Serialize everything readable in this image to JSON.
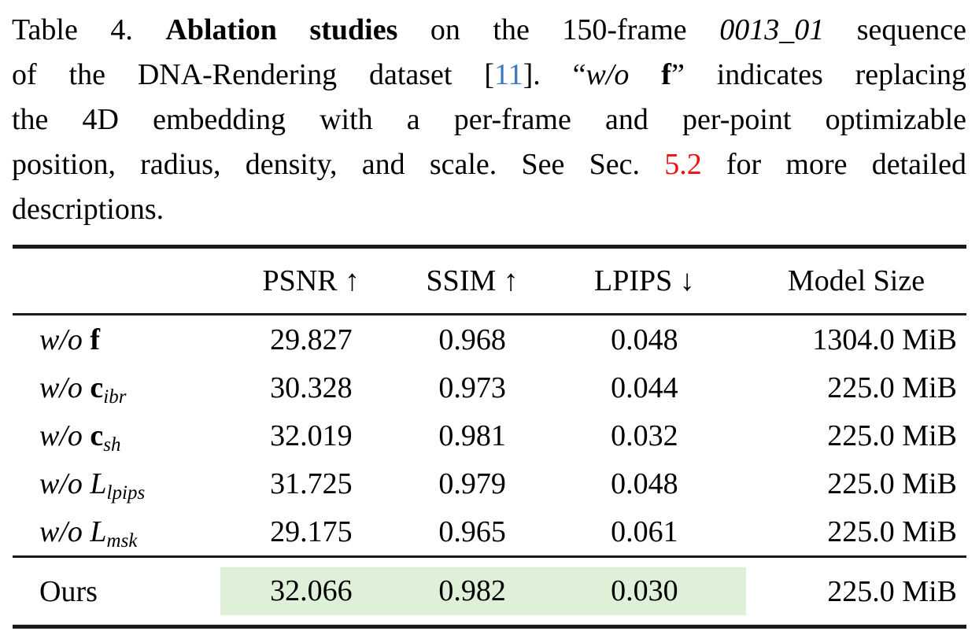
{
  "caption": {
    "line1": {
      "label": "Table 4. ",
      "bold_title": "Ablation studies",
      "a": " on the 150-frame ",
      "sequence_name": "0013_01",
      "b": " sequence"
    },
    "line2": {
      "a": "of the DNA-Rendering dataset [",
      "citation": "11",
      "b": "]. “",
      "wo": "w/o ",
      "f": "f",
      "c": "” indicates replacing"
    },
    "line3": {
      "text": "the 4D embedding with a per-frame and per-point optimizable"
    },
    "line4": {
      "a": "position, radius, density, and scale. See Sec. ",
      "section_ref": "5.2",
      "b": " for more detailed"
    },
    "line5": {
      "text": "descriptions."
    }
  },
  "table": {
    "headers": {
      "psnr": "PSNR ↑",
      "ssim": "SSIM ↑",
      "lpips": "LPIPS ↓",
      "size": "Model Size"
    },
    "rows": [
      {
        "wo": "w/o ",
        "symbol": "f",
        "sub": "",
        "psnr": "29.827",
        "ssim": "0.968",
        "lpips": "0.048",
        "size": "1304.0 MiB"
      },
      {
        "wo": "w/o ",
        "symbol": "c",
        "sub": "ibr",
        "psnr": "30.328",
        "ssim": "0.973",
        "lpips": "0.044",
        "size": "225.0 MiB"
      },
      {
        "wo": "w/o ",
        "symbol": "c",
        "sub": "sh",
        "psnr": "32.019",
        "ssim": "0.981",
        "lpips": "0.032",
        "size": "225.0 MiB"
      },
      {
        "wo": "w/o ",
        "symbol": "L",
        "sub": "lpips",
        "psnr": "31.725",
        "ssim": "0.979",
        "lpips": "0.048",
        "size": "225.0 MiB"
      },
      {
        "wo": "w/o ",
        "symbol": "L",
        "sub": "msk",
        "psnr": "29.175",
        "ssim": "0.965",
        "lpips": "0.061",
        "size": "225.0 MiB"
      }
    ],
    "ours": {
      "label": "Ours",
      "psnr": "32.066",
      "ssim": "0.982",
      "lpips": "0.030",
      "size": "225.0 MiB"
    }
  },
  "colors": {
    "citation_blue": "#3c78be",
    "section_red": "#ee1111",
    "highlight_green": "#dff0d8",
    "rule_black": "#1a1a1a"
  }
}
